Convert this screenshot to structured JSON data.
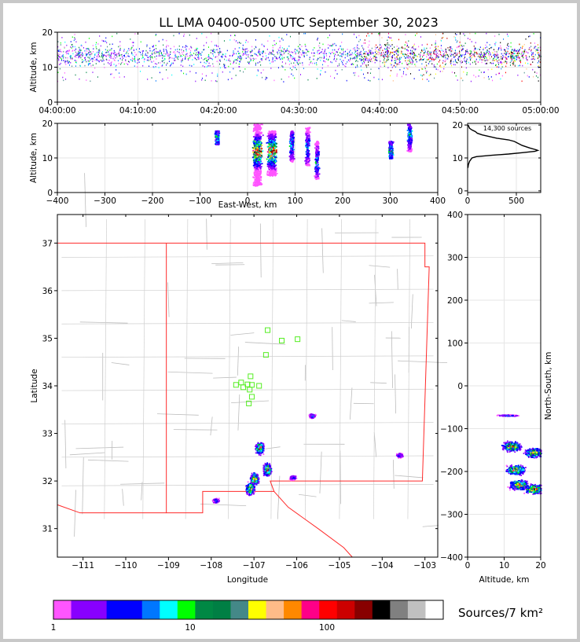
{
  "title": "LL LMA 0400-0500 UTC September 30, 2023",
  "chart_data": [
    {
      "panel": "time-height",
      "type": "scatter",
      "ylabel": "Altitude, km",
      "xlim": [
        "04:00:00",
        "05:00:00"
      ],
      "ylim": [
        0,
        20
      ],
      "xticks": [
        "04:00:00",
        "04:10:00",
        "04:20:00",
        "04:30:00",
        "04:40:00",
        "04:50:00",
        "05:00:00"
      ],
      "yticks": [
        "0",
        "10",
        "20"
      ],
      "grid": true
    },
    {
      "panel": "east-west-altitude",
      "type": "heatmap",
      "xlabel": "East-West, km",
      "ylabel": "Altitude, km",
      "xlim": [
        -400,
        400
      ],
      "ylim": [
        0,
        20
      ],
      "xticks": [
        "−400",
        "−300",
        "−200",
        "−100",
        "0",
        "100",
        "200",
        "300",
        "400"
      ],
      "yticks": [
        "0",
        "10",
        "20"
      ],
      "grid": true,
      "clusters": [
        {
          "x": 20,
          "y_from": 2,
          "y_to": 20,
          "peak_altitude": 12
        },
        {
          "x": 50,
          "y_from": 5,
          "y_to": 18,
          "peak_altitude": 12
        },
        {
          "x": 92,
          "y_from": 9,
          "y_to": 18,
          "peak_altitude": 14
        },
        {
          "x": 125,
          "y_from": 8,
          "y_to": 19,
          "peak_altitude": 13
        },
        {
          "x": 145,
          "y_from": 4,
          "y_to": 15,
          "peak_altitude": 9
        },
        {
          "x": 340,
          "y_from": 12,
          "y_to": 20,
          "peak_altitude": 17
        },
        {
          "x": -65,
          "y_from": 14,
          "y_to": 18,
          "peak_altitude": 16
        },
        {
          "x": 300,
          "y_from": 10,
          "y_to": 15,
          "peak_altitude": 12
        }
      ]
    },
    {
      "panel": "altitude-histogram",
      "type": "line",
      "annotation": "14,300 sources",
      "xlim": [
        0,
        750
      ],
      "ylim": [
        0,
        20
      ],
      "xticks": [
        "0",
        "500"
      ],
      "yticks": [
        "0",
        "10",
        "20"
      ],
      "grid": true,
      "x": [
        5,
        20,
        45,
        80,
        100,
        150,
        300,
        420,
        480,
        560,
        640,
        700,
        720,
        690,
        560,
        420,
        250,
        90,
        45,
        20,
        8,
        3
      ],
      "y": [
        20,
        19,
        18.5,
        18,
        17.5,
        17,
        16,
        15.5,
        15,
        13.8,
        13,
        12.5,
        12.3,
        12,
        11.6,
        11.2,
        10.8,
        10.4,
        10,
        9,
        8,
        7
      ]
    },
    {
      "panel": "plan-view-map",
      "type": "heatmap",
      "xlabel": "Longitude",
      "ylabel": "Latitude",
      "xlim": [
        -111.6,
        -102.7
      ],
      "ylim": [
        30.4,
        37.6
      ],
      "xticks": [
        "−111",
        "−110",
        "−109",
        "−108",
        "−107",
        "−106",
        "−105",
        "−104",
        "−103"
      ],
      "yticks": [
        "31",
        "32",
        "33",
        "34",
        "35",
        "36",
        "37"
      ],
      "stations": [
        [
          -106.68,
          35.17
        ],
        [
          -106.35,
          34.95
        ],
        [
          -105.98,
          34.98
        ],
        [
          -106.72,
          34.65
        ],
        [
          -107.08,
          34.2
        ],
        [
          -107.3,
          34.07
        ],
        [
          -107.15,
          34.03
        ],
        [
          -107.42,
          34.02
        ],
        [
          -107.25,
          33.97
        ],
        [
          -107.05,
          34.02
        ],
        [
          -106.88,
          34.0
        ],
        [
          -107.1,
          33.92
        ],
        [
          -107.05,
          33.77
        ],
        [
          -107.12,
          33.63
        ]
      ],
      "clusters": [
        {
          "lon": -106.88,
          "lat": 32.7
        },
        {
          "lon": -106.7,
          "lat": 32.25
        },
        {
          "lon": -107.0,
          "lat": 32.05
        },
        {
          "lon": -107.1,
          "lat": 31.85
        },
        {
          "lon": -106.1,
          "lat": 32.08
        },
        {
          "lon": -103.6,
          "lat": 32.55
        },
        {
          "lon": -105.65,
          "lat": 33.38
        },
        {
          "lon": -107.9,
          "lat": 31.6
        }
      ]
    },
    {
      "panel": "altitude-north-south",
      "type": "heatmap",
      "xlabel": "Altitude, km",
      "ylabel": "North-South, km",
      "xlim": [
        0,
        20
      ],
      "ylim": [
        -400,
        400
      ],
      "xticks": [
        "0",
        "10",
        "20"
      ],
      "yticks": [
        "−400",
        "−300",
        "−200",
        "−100",
        "0",
        "100",
        "200",
        "300",
        "400"
      ],
      "grid": true,
      "clusters": [
        {
          "alt": 11,
          "ns": -68
        },
        {
          "alt": 12,
          "ns": -140
        },
        {
          "alt": 13,
          "ns": -195
        },
        {
          "alt": 14,
          "ns": -230
        },
        {
          "alt": 18,
          "ns": -155
        },
        {
          "alt": 18,
          "ns": -240
        }
      ]
    }
  ],
  "colorbar": {
    "label": "Sources/7 km²",
    "tick_labels": [
      "1",
      "10",
      "100"
    ],
    "colors": [
      "#ff55ff",
      "#8800ff",
      "#8800ff",
      "#0000ff",
      "#0000ff",
      "#0077ff",
      "#00ffff",
      "#00ff00",
      "#008844",
      "#007f44",
      "#448888",
      "#ffff00",
      "#ffbb88",
      "#ff8800",
      "#ff0088",
      "#ff0000",
      "#cc0000",
      "#880000",
      "#000000",
      "#808080",
      "#c0c0c0",
      "#ffffff"
    ]
  }
}
